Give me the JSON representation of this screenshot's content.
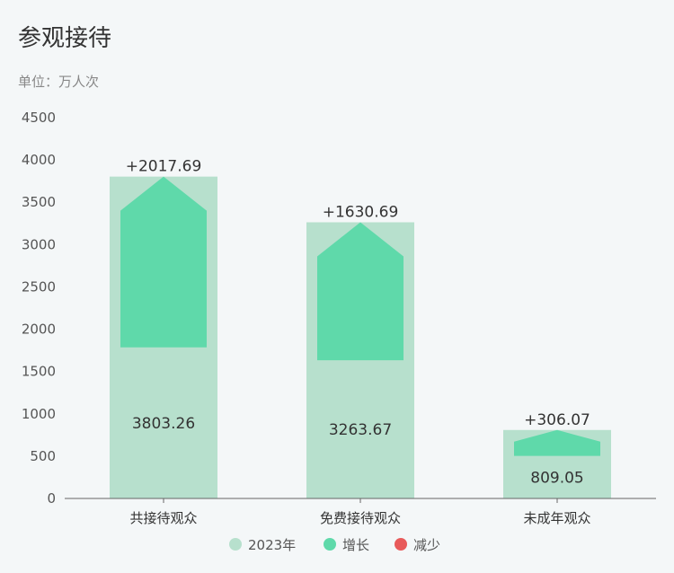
{
  "header": {
    "title": "参观接待",
    "unit": "单位：万人次"
  },
  "chart_data": {
    "type": "bar",
    "categories": [
      "共接待观众",
      "免费接待观众",
      "未成年观众"
    ],
    "series": [
      {
        "name": "2023年",
        "values": [
          3803.26,
          3263.67,
          809.05
        ],
        "color": "#b7e0cd"
      },
      {
        "name": "增长",
        "values": [
          2017.69,
          1630.69,
          306.07
        ],
        "color": "#5fd9aa"
      },
      {
        "name": "减少",
        "values": [
          0,
          0,
          0
        ],
        "color": "#e85a5a"
      }
    ],
    "value_labels": [
      "3803.26",
      "3263.67",
      "809.05"
    ],
    "delta_labels": [
      "+2017.69",
      "+1630.69",
      "+306.07"
    ],
    "yticks": [
      "0",
      "500",
      "1000",
      "1500",
      "2000",
      "2500",
      "3000",
      "3500",
      "4000",
      "4500"
    ],
    "ylim": [
      0,
      4500
    ],
    "legend": [
      "2023年",
      "增长",
      "减少"
    ],
    "legend_position": "bottom"
  }
}
